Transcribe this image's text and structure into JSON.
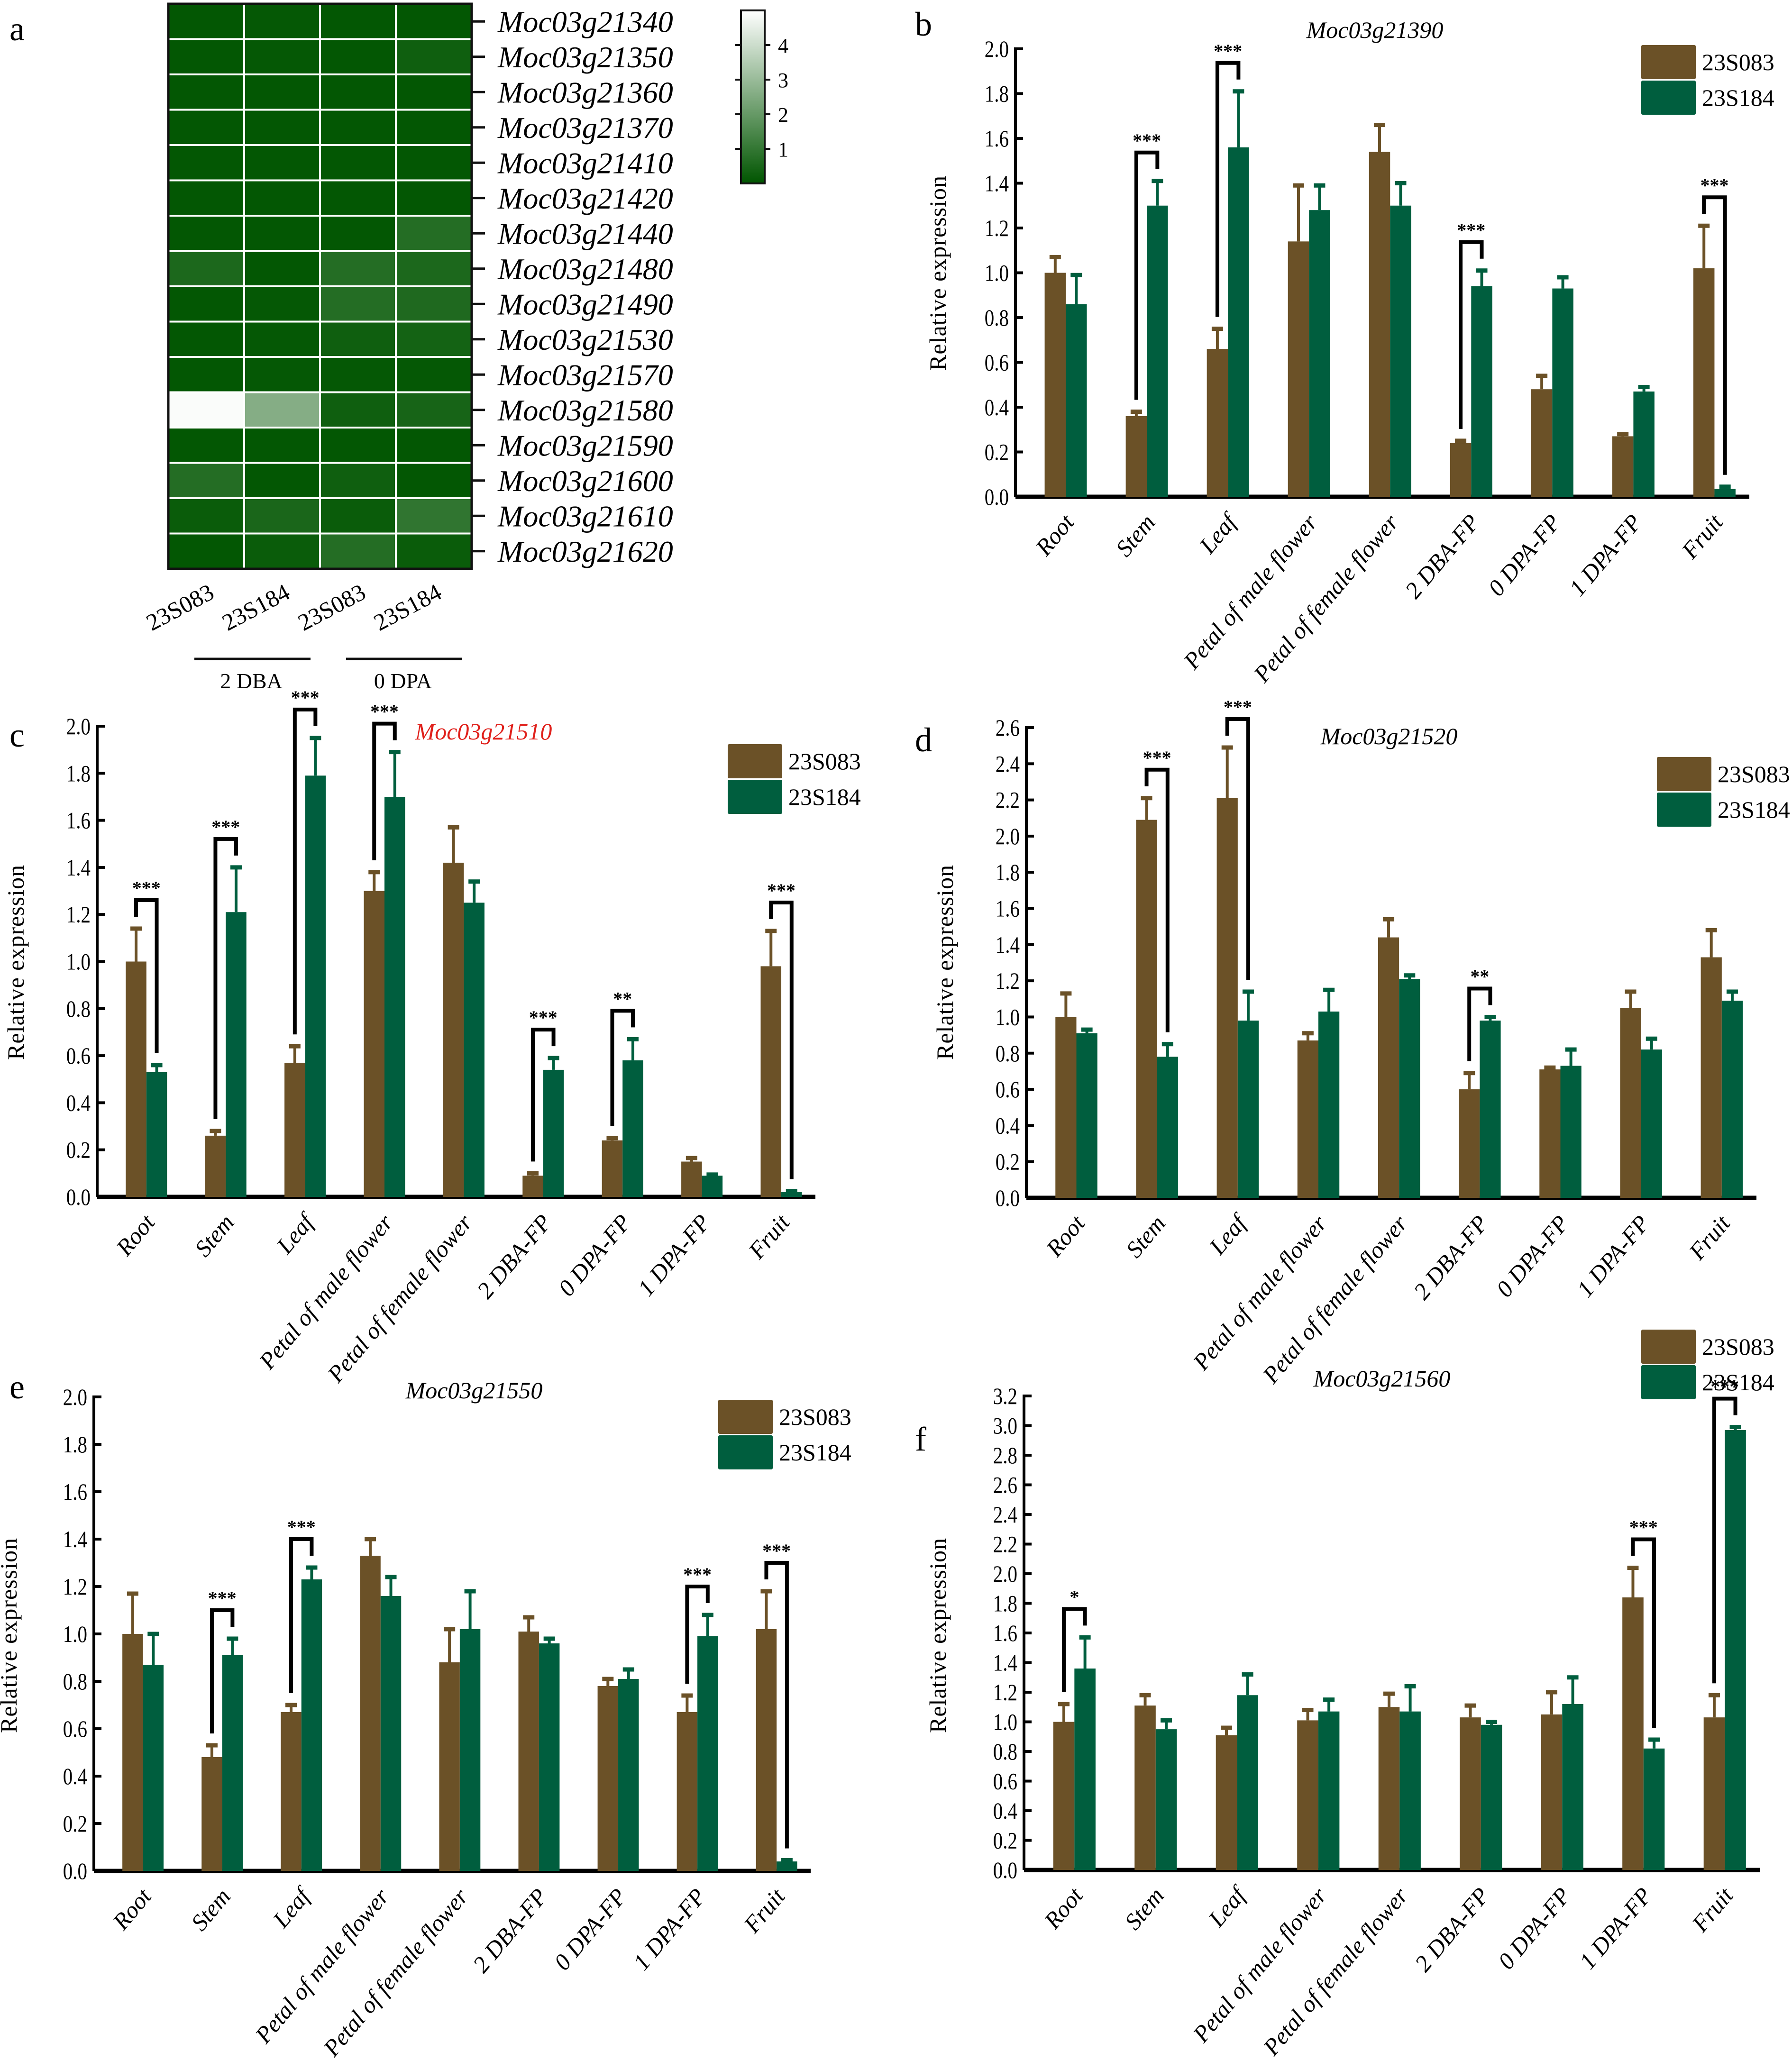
{
  "figure": {
    "panel_letters": [
      "a",
      "b",
      "c",
      "d",
      "e",
      "f"
    ]
  },
  "chart_data": [
    {
      "panel": "a",
      "type": "heatmap",
      "title": "",
      "rows": [
        "Moc03g21340",
        "Moc03g21350",
        "Moc03g21360",
        "Moc03g21370",
        "Moc03g21410",
        "Moc03g21420",
        "Moc03g21440",
        "Moc03g21480",
        "Moc03g21490",
        "Moc03g21530",
        "Moc03g21570",
        "Moc03g21580",
        "Moc03g21590",
        "Moc03g21600",
        "Moc03g21610",
        "Moc03g21620"
      ],
      "columns": [
        "23S083",
        "23S184",
        "23S083",
        "23S184"
      ],
      "column_groups": [
        {
          "label": "2 DBA",
          "columns": [
            0,
            1
          ]
        },
        {
          "label": "0 DPA",
          "columns": [
            2,
            3
          ]
        }
      ],
      "values": [
        [
          0.05,
          0.1,
          0.05,
          0.05
        ],
        [
          0.05,
          0.1,
          0.05,
          0.3
        ],
        [
          0.05,
          0.05,
          0.05,
          0.05
        ],
        [
          0.05,
          0.05,
          0.05,
          0.05
        ],
        [
          0.05,
          0.05,
          0.05,
          0.05
        ],
        [
          0.05,
          0.05,
          0.05,
          0.05
        ],
        [
          0.05,
          0.05,
          0.05,
          0.7
        ],
        [
          0.55,
          0.05,
          0.7,
          0.55
        ],
        [
          0.05,
          0.1,
          0.7,
          0.6
        ],
        [
          0.05,
          0.1,
          0.3,
          0.4
        ],
        [
          0.05,
          0.1,
          0.1,
          0.1
        ],
        [
          4.9,
          2.6,
          0.3,
          0.45
        ],
        [
          0.05,
          0.05,
          0.05,
          0.05
        ],
        [
          0.7,
          0.05,
          0.3,
          0.05
        ],
        [
          0.2,
          0.5,
          0.2,
          0.95
        ],
        [
          0.05,
          0.2,
          0.7,
          0.2
        ]
      ],
      "colorbar": {
        "ticks": [
          1,
          2,
          3,
          4
        ],
        "range": [
          0,
          5
        ],
        "low_color": "#005500",
        "high_color": "#ffffff"
      }
    },
    {
      "panel": "b",
      "type": "bar",
      "title": "Moc03g21390",
      "title_color": "#000000",
      "xlabel": "",
      "ylabel": "Relative expression",
      "ylim": [
        0,
        2.0
      ],
      "yticks": [
        "0.0",
        "0.2",
        "0.4",
        "0.6",
        "0.8",
        "1.0",
        "1.2",
        "1.4",
        "1.6",
        "1.8",
        "2.0"
      ],
      "categories": [
        "Root",
        "Stem",
        "Leaf",
        "Petal of male flower",
        "Petal of female flower",
        "2 DBA-FP",
        "0 DPA-FP",
        "1 DPA-FP",
        "Fruit"
      ],
      "series": [
        {
          "name": "23S083",
          "color": "#6b5127",
          "values": [
            1.0,
            0.36,
            0.66,
            1.14,
            1.54,
            0.24,
            0.48,
            0.27,
            1.02
          ],
          "errors": [
            0.07,
            0.02,
            0.09,
            0.25,
            0.12,
            0.01,
            0.06,
            0.01,
            0.19
          ]
        },
        {
          "name": "23S184",
          "color": "#005e3e",
          "values": [
            0.86,
            1.3,
            1.56,
            1.28,
            1.3,
            0.94,
            0.93,
            0.47,
            0.035
          ],
          "errors": [
            0.13,
            0.11,
            0.25,
            0.11,
            0.1,
            0.07,
            0.05,
            0.02,
            0.01
          ]
        }
      ],
      "significance": [
        {
          "category": "Stem",
          "label": "***"
        },
        {
          "category": "Leaf",
          "label": "***"
        },
        {
          "category": "2 DBA-FP",
          "label": "***"
        },
        {
          "category": "Fruit",
          "label": "***"
        }
      ],
      "legend": "top-right"
    },
    {
      "panel": "c",
      "type": "bar",
      "title": "Moc03g21510",
      "title_color": "#e0201b",
      "xlabel": "",
      "ylabel": "Relative expression",
      "ylim": [
        0,
        2.0
      ],
      "yticks": [
        "0.0",
        "0.2",
        "0.4",
        "0.6",
        "0.8",
        "1.0",
        "1.2",
        "1.4",
        "1.6",
        "1.8",
        "2.0"
      ],
      "categories": [
        "Root",
        "Stem",
        "Leaf",
        "Petal of male flower",
        "Petal of female flower",
        "2 DBA-FP",
        "0 DPA-FP",
        "1 DPA-FP",
        "Fruit"
      ],
      "series": [
        {
          "name": "23S083",
          "color": "#6b5127",
          "values": [
            1.0,
            0.26,
            0.57,
            1.3,
            1.42,
            0.09,
            0.24,
            0.15,
            0.98
          ],
          "errors": [
            0.14,
            0.02,
            0.07,
            0.08,
            0.15,
            0.01,
            0.01,
            0.015,
            0.15
          ]
        },
        {
          "name": "23S184",
          "color": "#005e3e",
          "values": [
            0.53,
            1.21,
            1.79,
            1.7,
            1.25,
            0.54,
            0.58,
            0.09,
            0.02
          ],
          "errors": [
            0.03,
            0.19,
            0.16,
            0.19,
            0.09,
            0.05,
            0.09,
            0.005,
            0.005
          ]
        }
      ],
      "significance": [
        {
          "category": "Root",
          "label": "***"
        },
        {
          "category": "Stem",
          "label": "***"
        },
        {
          "category": "Leaf",
          "label": "***"
        },
        {
          "category": "Petal of male flower",
          "label": "***"
        },
        {
          "category": "2 DBA-FP",
          "label": "***"
        },
        {
          "category": "0 DPA-FP",
          "label": "**"
        },
        {
          "category": "Fruit",
          "label": "***"
        }
      ],
      "legend": "top-right"
    },
    {
      "panel": "d",
      "type": "bar",
      "title": "Moc03g21520",
      "title_color": "#000000",
      "xlabel": "",
      "ylabel": "Relative expression",
      "ylim": [
        0,
        2.6
      ],
      "yticks": [
        "0.0",
        "0.2",
        "0.4",
        "0.6",
        "0.8",
        "1.0",
        "1.2",
        "1.4",
        "1.6",
        "1.8",
        "2.0",
        "2.2",
        "2.4",
        "2.6"
      ],
      "categories": [
        "Root",
        "Stem",
        "Leaf",
        "Petal of male flower",
        "Petal of female flower",
        "2 DBA-FP",
        "0 DPA-FP",
        "1 DPA-FP",
        "Fruit"
      ],
      "series": [
        {
          "name": "23S083",
          "color": "#6b5127",
          "values": [
            1.0,
            2.09,
            2.21,
            0.87,
            1.44,
            0.6,
            0.71,
            1.05,
            1.33
          ],
          "errors": [
            0.13,
            0.12,
            0.28,
            0.04,
            0.1,
            0.09,
            0.01,
            0.09,
            0.15
          ]
        },
        {
          "name": "23S184",
          "color": "#005e3e",
          "values": [
            0.91,
            0.78,
            0.98,
            1.03,
            1.21,
            0.98,
            0.73,
            0.82,
            1.09
          ],
          "errors": [
            0.02,
            0.07,
            0.16,
            0.12,
            0.02,
            0.02,
            0.09,
            0.06,
            0.05
          ]
        }
      ],
      "significance": [
        {
          "category": "Stem",
          "label": "***"
        },
        {
          "category": "Leaf",
          "label": "***"
        },
        {
          "category": "2 DBA-FP",
          "label": "**"
        }
      ],
      "legend": "top-right"
    },
    {
      "panel": "e",
      "type": "bar",
      "title": "Moc03g21550",
      "title_color": "#000000",
      "xlabel": "",
      "ylabel": "Relative expression",
      "ylim": [
        0,
        2.0
      ],
      "yticks": [
        "0.0",
        "0.2",
        "0.4",
        "0.6",
        "0.8",
        "1.0",
        "1.2",
        "1.4",
        "1.6",
        "1.8",
        "2.0"
      ],
      "categories": [
        "Root",
        "Stem",
        "Leaf",
        "Petal of male flower",
        "Petal of female flower",
        "2 DBA-FP",
        "0 DPA-FP",
        "1 DPA-FP",
        "Fruit"
      ],
      "series": [
        {
          "name": "23S083",
          "color": "#6b5127",
          "values": [
            1.0,
            0.48,
            0.67,
            1.33,
            0.88,
            1.01,
            0.78,
            0.67,
            1.02
          ],
          "errors": [
            0.17,
            0.05,
            0.03,
            0.07,
            0.14,
            0.06,
            0.03,
            0.07,
            0.16
          ]
        },
        {
          "name": "23S184",
          "color": "#005e3e",
          "values": [
            0.87,
            0.91,
            1.23,
            1.16,
            1.02,
            0.96,
            0.81,
            0.99,
            0.04
          ],
          "errors": [
            0.13,
            0.07,
            0.05,
            0.08,
            0.16,
            0.02,
            0.04,
            0.09,
            0.005
          ]
        }
      ],
      "significance": [
        {
          "category": "Stem",
          "label": "***"
        },
        {
          "category": "Leaf",
          "label": "***"
        },
        {
          "category": "1 DPA-FP",
          "label": "***"
        },
        {
          "category": "Fruit",
          "label": "***"
        }
      ],
      "legend": "top-right"
    },
    {
      "panel": "f",
      "type": "bar",
      "title": "Moc03g21560",
      "title_color": "#000000",
      "xlabel": "",
      "ylabel": "Relative expression",
      "ylim": [
        0,
        3.2
      ],
      "yticks": [
        "0.0",
        "0.2",
        "0.4",
        "0.6",
        "0.8",
        "1.0",
        "1.2",
        "1.4",
        "1.6",
        "1.8",
        "2.0",
        "2.2",
        "2.4",
        "2.6",
        "2.8",
        "3.0",
        "3.2"
      ],
      "categories": [
        "Root",
        "Stem",
        "Leaf",
        "Petal of male flower",
        "Petal of female flower",
        "2 DBA-FP",
        "0 DPA-FP",
        "1 DPA-FP",
        "Fruit"
      ],
      "series": [
        {
          "name": "23S083",
          "color": "#6b5127",
          "values": [
            1.0,
            1.11,
            0.91,
            1.01,
            1.1,
            1.03,
            1.05,
            1.84,
            1.03
          ],
          "errors": [
            0.12,
            0.07,
            0.05,
            0.07,
            0.09,
            0.08,
            0.15,
            0.2,
            0.15
          ]
        },
        {
          "name": "23S184",
          "color": "#005e3e",
          "values": [
            1.36,
            0.95,
            1.18,
            1.07,
            1.07,
            0.98,
            1.12,
            0.82,
            2.97
          ],
          "errors": [
            0.21,
            0.06,
            0.14,
            0.08,
            0.17,
            0.02,
            0.18,
            0.06,
            0.02
          ]
        }
      ],
      "significance": [
        {
          "category": "Root",
          "label": "*"
        },
        {
          "category": "1 DPA-FP",
          "label": "***"
        },
        {
          "category": "Fruit",
          "label": "***"
        }
      ],
      "legend": "top-right"
    }
  ]
}
